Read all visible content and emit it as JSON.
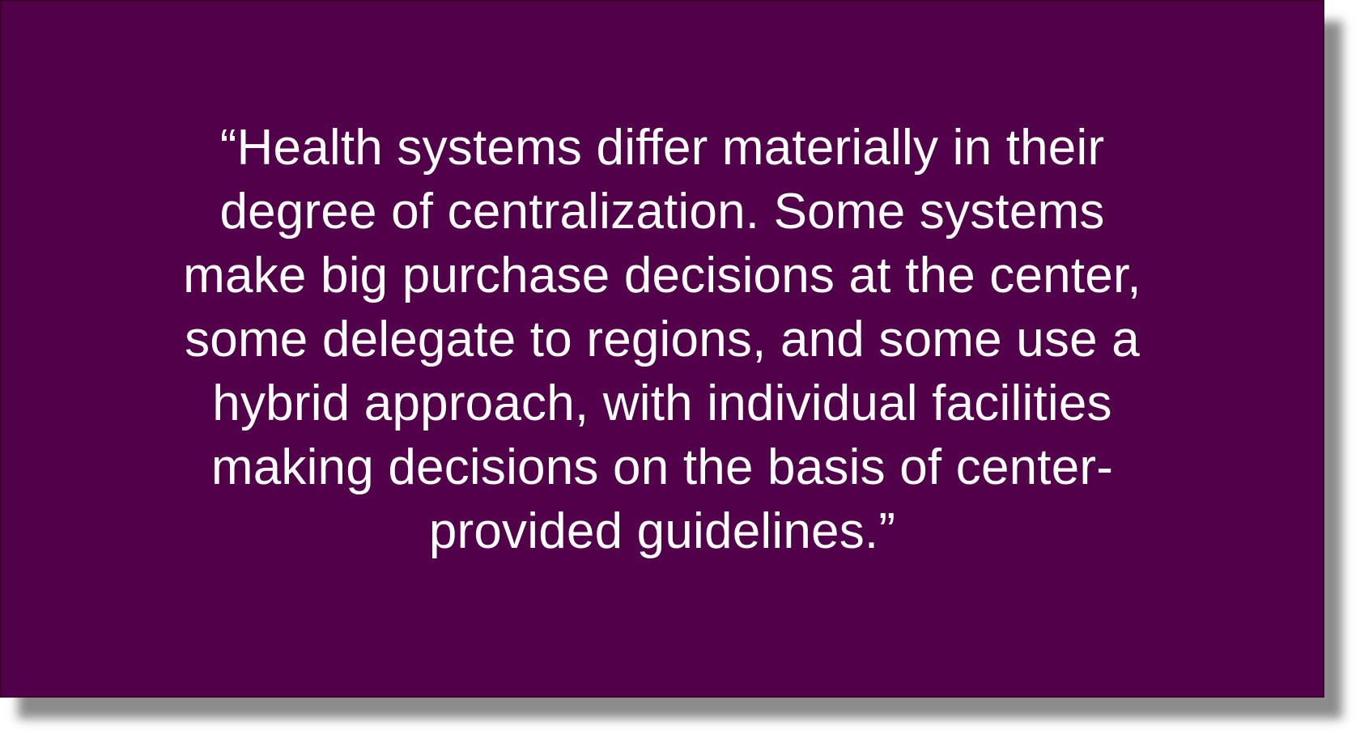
{
  "colors": {
    "card_background": "#53004a",
    "text": "#ffffff"
  },
  "quote": {
    "lines": [
      "“Health systems differ materially in their",
      "degree of centralization. Some systems",
      "make big purchase decisions at the center,",
      "some delegate to regions, and some use a",
      "hybrid approach, with individual facilities",
      "making decisions on the basis of center-",
      "provided guidelines.”"
    ]
  }
}
